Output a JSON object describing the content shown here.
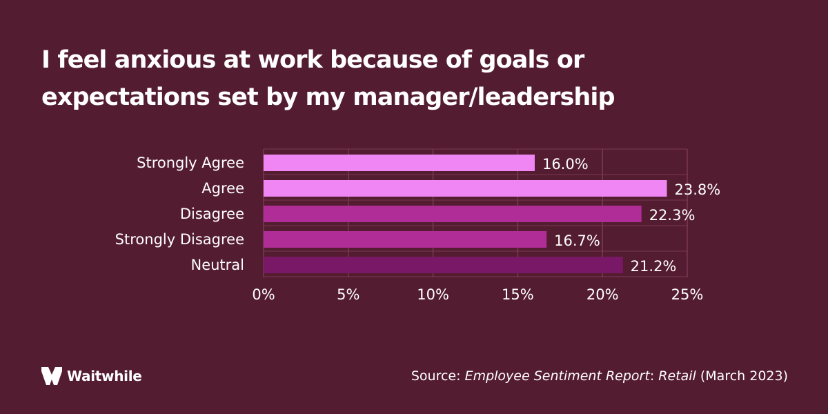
{
  "colors": {
    "background": "#541c30",
    "text": "#ffffff",
    "grid": "#7a3a52",
    "bar_light": "#f086f3",
    "bar_mid": "#b02c96",
    "bar_dark": "#7a1868"
  },
  "header": {
    "title": "I feel anxious at work because of goals or expectations set by my manager/leadership"
  },
  "chart_data": {
    "type": "bar",
    "orientation": "horizontal",
    "categories": [
      "Strongly Agree",
      "Agree",
      "Disagree",
      "Strongly Disagree",
      "Neutral"
    ],
    "values": [
      16.0,
      23.8,
      22.3,
      16.7,
      21.2
    ],
    "value_labels": [
      "16.0%",
      "23.8%",
      "22.3%",
      "16.7%",
      "21.2%"
    ],
    "bar_colors": [
      "#f086f3",
      "#f086f3",
      "#b02c96",
      "#b02c96",
      "#7a1868"
    ],
    "xlim": [
      0,
      25
    ],
    "xticks": [
      0,
      5,
      10,
      15,
      20,
      25
    ],
    "xtick_labels": [
      "0%",
      "5%",
      "10%",
      "15%",
      "20%",
      "25%"
    ],
    "grid": true,
    "legend": "none"
  },
  "footer": {
    "brand_icon": "waitwhile-logo-icon",
    "brand_name": "Waitwhile",
    "source_prefix": "Source:",
    "source_report": "Employee Sentiment Report",
    "source_colon": ":",
    "source_sector": "Retail",
    "source_date": "(March 2023)"
  }
}
